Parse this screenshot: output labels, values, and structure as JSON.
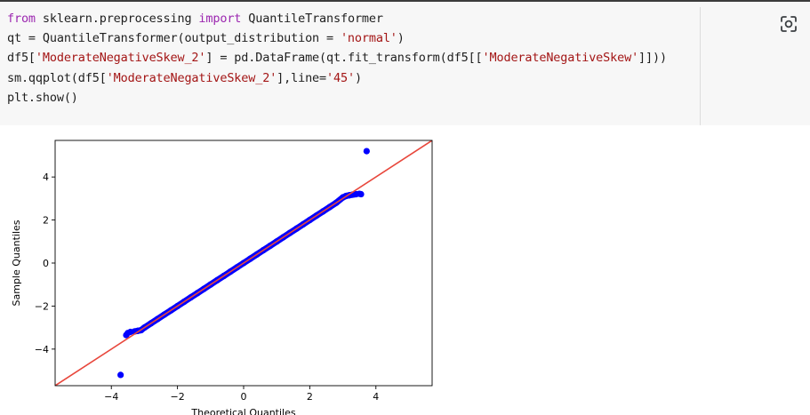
{
  "code": {
    "lines": [
      [
        {
          "t": "from",
          "c": "kw"
        },
        {
          "t": " sklearn.preprocessing ",
          "c": ""
        },
        {
          "t": "import",
          "c": "kw"
        },
        {
          "t": " QuantileTransformer",
          "c": ""
        }
      ],
      [
        {
          "t": "qt = QuantileTransformer(output_distribution = ",
          "c": ""
        },
        {
          "t": "'normal'",
          "c": "str"
        },
        {
          "t": ")",
          "c": ""
        }
      ],
      [
        {
          "t": "df5[",
          "c": ""
        },
        {
          "t": "'ModerateNegativeSkew_2'",
          "c": "str"
        },
        {
          "t": "] = pd.DataFrame(qt.fit_transform(df5[[",
          "c": ""
        },
        {
          "t": "'ModerateNegativeSkew'",
          "c": "str"
        },
        {
          "t": "]]))",
          "c": ""
        }
      ],
      [
        {
          "t": "sm.qqplot(df5[",
          "c": ""
        },
        {
          "t": "'ModerateNegativeSkew_2'",
          "c": "str"
        },
        {
          "t": "],line=",
          "c": ""
        },
        {
          "t": "'45'",
          "c": "str"
        },
        {
          "t": ")",
          "c": ""
        }
      ],
      [
        {
          "t": "plt.show()",
          "c": ""
        }
      ]
    ]
  },
  "toolbar": {
    "lens_icon": "google-lens-icon"
  },
  "colors": {
    "points": "#0000ff",
    "reference_line": "#e8473c",
    "keyword": "#9c27b0",
    "string": "#a31515"
  },
  "chart_data": {
    "type": "scatter",
    "title": "",
    "xlabel": "Theoretical Quantiles",
    "ylabel": "Sample Quantiles",
    "xlim": [
      -5.7,
      5.7
    ],
    "ylim": [
      -5.7,
      5.7
    ],
    "xticks": [
      -4,
      -2,
      0,
      2,
      4
    ],
    "yticks": [
      -4,
      -2,
      0,
      2,
      4
    ],
    "xtick_labels": [
      "−4",
      "−2",
      "0",
      "2",
      "4"
    ],
    "ytick_labels": [
      "−4",
      "−2",
      "0",
      "2",
      "4"
    ],
    "reference_line": {
      "type": "45-degree",
      "slope": 1,
      "intercept": 0
    },
    "grid": false,
    "series": [
      {
        "points": [
          [
            -3.72,
            -5.2
          ],
          [
            -3.55,
            -3.35
          ],
          [
            -3.5,
            -3.25
          ],
          [
            -3.42,
            -3.2
          ],
          [
            -3.3,
            -3.18
          ],
          [
            -3.2,
            -3.15
          ],
          [
            -3.1,
            -3.12
          ],
          [
            -3.0,
            -3.0
          ],
          [
            -2.8,
            -2.8
          ],
          [
            -2.6,
            -2.6
          ],
          [
            -2.4,
            -2.4
          ],
          [
            -2.2,
            -2.2
          ],
          [
            -2.0,
            -2.0
          ],
          [
            -1.8,
            -1.8
          ],
          [
            -1.6,
            -1.6
          ],
          [
            -1.4,
            -1.4
          ],
          [
            -1.2,
            -1.2
          ],
          [
            -1.0,
            -1.0
          ],
          [
            -0.8,
            -0.8
          ],
          [
            -0.6,
            -0.6
          ],
          [
            -0.4,
            -0.4
          ],
          [
            -0.2,
            -0.2
          ],
          [
            0.0,
            0.0
          ],
          [
            0.2,
            0.2
          ],
          [
            0.4,
            0.4
          ],
          [
            0.6,
            0.6
          ],
          [
            0.8,
            0.8
          ],
          [
            1.0,
            1.0
          ],
          [
            1.2,
            1.2
          ],
          [
            1.4,
            1.4
          ],
          [
            1.6,
            1.6
          ],
          [
            1.8,
            1.8
          ],
          [
            2.0,
            2.0
          ],
          [
            2.2,
            2.2
          ],
          [
            2.4,
            2.4
          ],
          [
            2.6,
            2.6
          ],
          [
            2.8,
            2.8
          ],
          [
            3.0,
            3.05
          ],
          [
            3.1,
            3.12
          ],
          [
            3.2,
            3.15
          ],
          [
            3.3,
            3.18
          ],
          [
            3.4,
            3.2
          ],
          [
            3.5,
            3.22
          ],
          [
            3.55,
            3.2
          ],
          [
            3.72,
            5.2
          ]
        ]
      }
    ]
  }
}
